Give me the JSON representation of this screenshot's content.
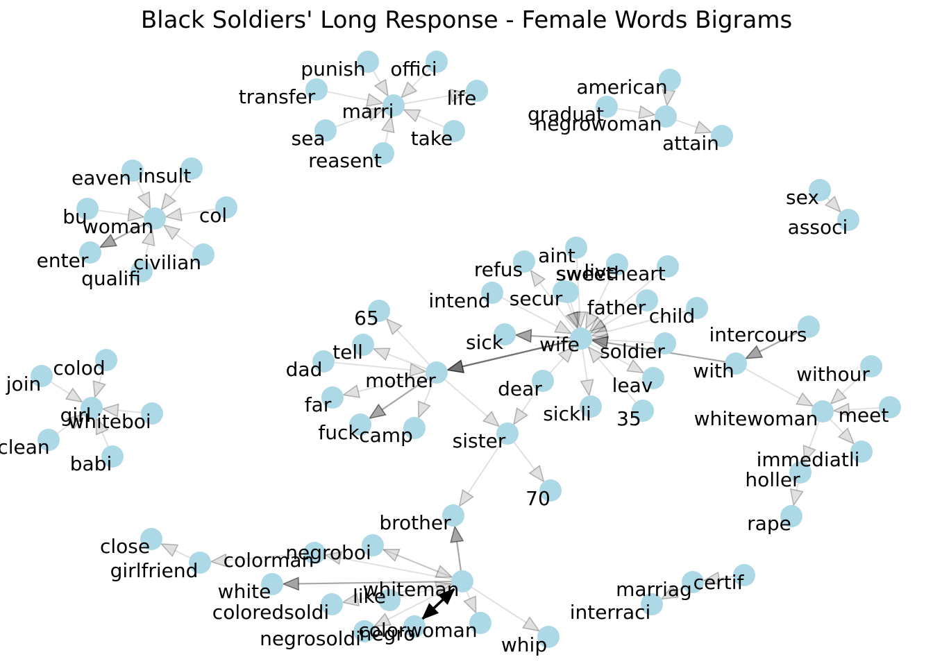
{
  "title": "Black Soldiers' Long Response - Female Words Bigrams",
  "colors": {
    "node": "#add8e6",
    "edge": "#000000",
    "label": "#000000",
    "background": "#ffffff"
  },
  "chart_data": {
    "type": "directed-graph",
    "title": "Black Soldiers' Long Response - Female Words Bigrams",
    "nodes": [
      "punish",
      "offici",
      "transfer",
      "marri",
      "life",
      "sea",
      "take",
      "reasent",
      "american",
      "graduat",
      "negrowoman",
      "attain",
      "eaven",
      "insult",
      "bu",
      "woman",
      "col",
      "enter",
      "civilian",
      "qualifi",
      "sex",
      "associ",
      "aint",
      "refus",
      "live",
      "sweetheart",
      "sweet",
      "intend",
      "secur",
      "father",
      "child",
      "65",
      "sick",
      "wife",
      "intercours",
      "tell",
      "soldier",
      "with",
      "withour",
      "dad",
      "mother",
      "dear",
      "leav",
      "far",
      "whitewoman",
      "meet",
      "fuck",
      "camp",
      "sickli",
      "35",
      "sister",
      "immediatli",
      "holler",
      "70",
      "rape",
      "brother",
      "colod",
      "join",
      "girl",
      "whiteboi",
      "clean",
      "babi",
      "close",
      "negroboi",
      "girlfriend",
      "colorman",
      "white",
      "whiteman",
      "like",
      "coloredsoldi",
      "negrosoldi",
      "negro",
      "colorwoman",
      "whip",
      "certif",
      "marriag",
      "interraci"
    ],
    "edges": [
      {
        "source": "punish",
        "target": "marri",
        "weight": 1
      },
      {
        "source": "offici",
        "target": "marri",
        "weight": 1
      },
      {
        "source": "transfer",
        "target": "marri",
        "weight": 1
      },
      {
        "source": "marri",
        "target": "life",
        "weight": 1
      },
      {
        "source": "sea",
        "target": "marri",
        "weight": 1
      },
      {
        "source": "take",
        "target": "marri",
        "weight": 1
      },
      {
        "source": "reasent",
        "target": "marri",
        "weight": 1
      },
      {
        "source": "american",
        "target": "negrowoman",
        "weight": 1
      },
      {
        "source": "graduat",
        "target": "negrowoman",
        "weight": 1
      },
      {
        "source": "negrowoman",
        "target": "attain",
        "weight": 1
      },
      {
        "source": "eaven",
        "target": "woman",
        "weight": 1
      },
      {
        "source": "insult",
        "target": "woman",
        "weight": 1
      },
      {
        "source": "bu",
        "target": "woman",
        "weight": 1
      },
      {
        "source": "col",
        "target": "woman",
        "weight": 1
      },
      {
        "source": "woman",
        "target": "enter",
        "weight": 2
      },
      {
        "source": "civilian",
        "target": "woman",
        "weight": 1
      },
      {
        "source": "qualifi",
        "target": "woman",
        "weight": 1
      },
      {
        "source": "sex",
        "target": "associ",
        "weight": 1
      },
      {
        "source": "wife",
        "target": "refus",
        "weight": 1
      },
      {
        "source": "aint",
        "target": "wife",
        "weight": 1
      },
      {
        "source": "live",
        "target": "wife",
        "weight": 1
      },
      {
        "source": "sweetheart",
        "target": "wife",
        "weight": 1
      },
      {
        "source": "sweet",
        "target": "wife",
        "weight": 1
      },
      {
        "source": "intend",
        "target": "wife",
        "weight": 1
      },
      {
        "source": "secur",
        "target": "wife",
        "weight": 1
      },
      {
        "source": "father",
        "target": "wife",
        "weight": 1
      },
      {
        "source": "child",
        "target": "wife",
        "weight": 1
      },
      {
        "source": "wife",
        "target": "sick",
        "weight": 2
      },
      {
        "source": "soldier",
        "target": "wife",
        "weight": 1
      },
      {
        "source": "with",
        "target": "wife",
        "weight": 2
      },
      {
        "source": "wife",
        "target": "leav",
        "weight": 1
      },
      {
        "source": "wife",
        "target": "sickli",
        "weight": 1
      },
      {
        "source": "35",
        "target": "wife",
        "weight": 1
      },
      {
        "source": "dear",
        "target": "wife",
        "weight": 1
      },
      {
        "source": "wife",
        "target": "mother",
        "weight": 3
      },
      {
        "source": "intercours",
        "target": "with",
        "weight": 2
      },
      {
        "source": "with",
        "target": "whitewoman",
        "weight": 1
      },
      {
        "source": "withour",
        "target": "whitewoman",
        "weight": 1
      },
      {
        "source": "meet",
        "target": "whitewoman",
        "weight": 1
      },
      {
        "source": "whitewoman",
        "target": "immediatli",
        "weight": 1
      },
      {
        "source": "whitewoman",
        "target": "holler",
        "weight": 1
      },
      {
        "source": "holler",
        "target": "rape",
        "weight": 1
      },
      {
        "source": "mother",
        "target": "65",
        "weight": 1
      },
      {
        "source": "mother",
        "target": "tell",
        "weight": 1
      },
      {
        "source": "dad",
        "target": "mother",
        "weight": 1
      },
      {
        "source": "mother",
        "target": "far",
        "weight": 1
      },
      {
        "source": "mother",
        "target": "fuck",
        "weight": 2
      },
      {
        "source": "mother",
        "target": "camp",
        "weight": 1
      },
      {
        "source": "mother",
        "target": "sister",
        "weight": 1
      },
      {
        "source": "dear",
        "target": "sister",
        "weight": 1
      },
      {
        "source": "sister",
        "target": "70",
        "weight": 1
      },
      {
        "source": "sister",
        "target": "brother",
        "weight": 1
      },
      {
        "source": "whiteman",
        "target": "brother",
        "weight": 2
      },
      {
        "source": "colod",
        "target": "girl",
        "weight": 1
      },
      {
        "source": "join",
        "target": "girl",
        "weight": 1
      },
      {
        "source": "whiteboi",
        "target": "girl",
        "weight": 1
      },
      {
        "source": "clean",
        "target": "girl",
        "weight": 1
      },
      {
        "source": "babi",
        "target": "girl",
        "weight": 1
      },
      {
        "source": "girlfriend",
        "target": "close",
        "weight": 1
      },
      {
        "source": "colorman",
        "target": "girlfriend",
        "weight": 1
      },
      {
        "source": "whiteman",
        "target": "white",
        "weight": 2
      },
      {
        "source": "negroboi",
        "target": "whiteman",
        "weight": 1
      },
      {
        "source": "whiteman",
        "target": "colorman",
        "weight": 1
      },
      {
        "source": "whiteman",
        "target": "negroboi",
        "weight": 1
      },
      {
        "source": "whiteman",
        "target": "coloredsoldi",
        "weight": 1
      },
      {
        "source": "whiteman",
        "target": "negrosoldi",
        "weight": 1
      },
      {
        "source": "whiteman",
        "target": "colorwoman",
        "weight": 1
      },
      {
        "source": "whiteman",
        "target": "whip",
        "weight": 1
      },
      {
        "source": "like",
        "target": "whiteman",
        "weight": 1
      },
      {
        "source": "whiteman",
        "target": "negro",
        "weight": 4
      },
      {
        "source": "negro",
        "target": "whiteman",
        "weight": 4
      },
      {
        "source": "certif",
        "target": "marriag",
        "weight": 1
      },
      {
        "source": "marriag",
        "target": "interraci",
        "weight": 1
      }
    ]
  }
}
